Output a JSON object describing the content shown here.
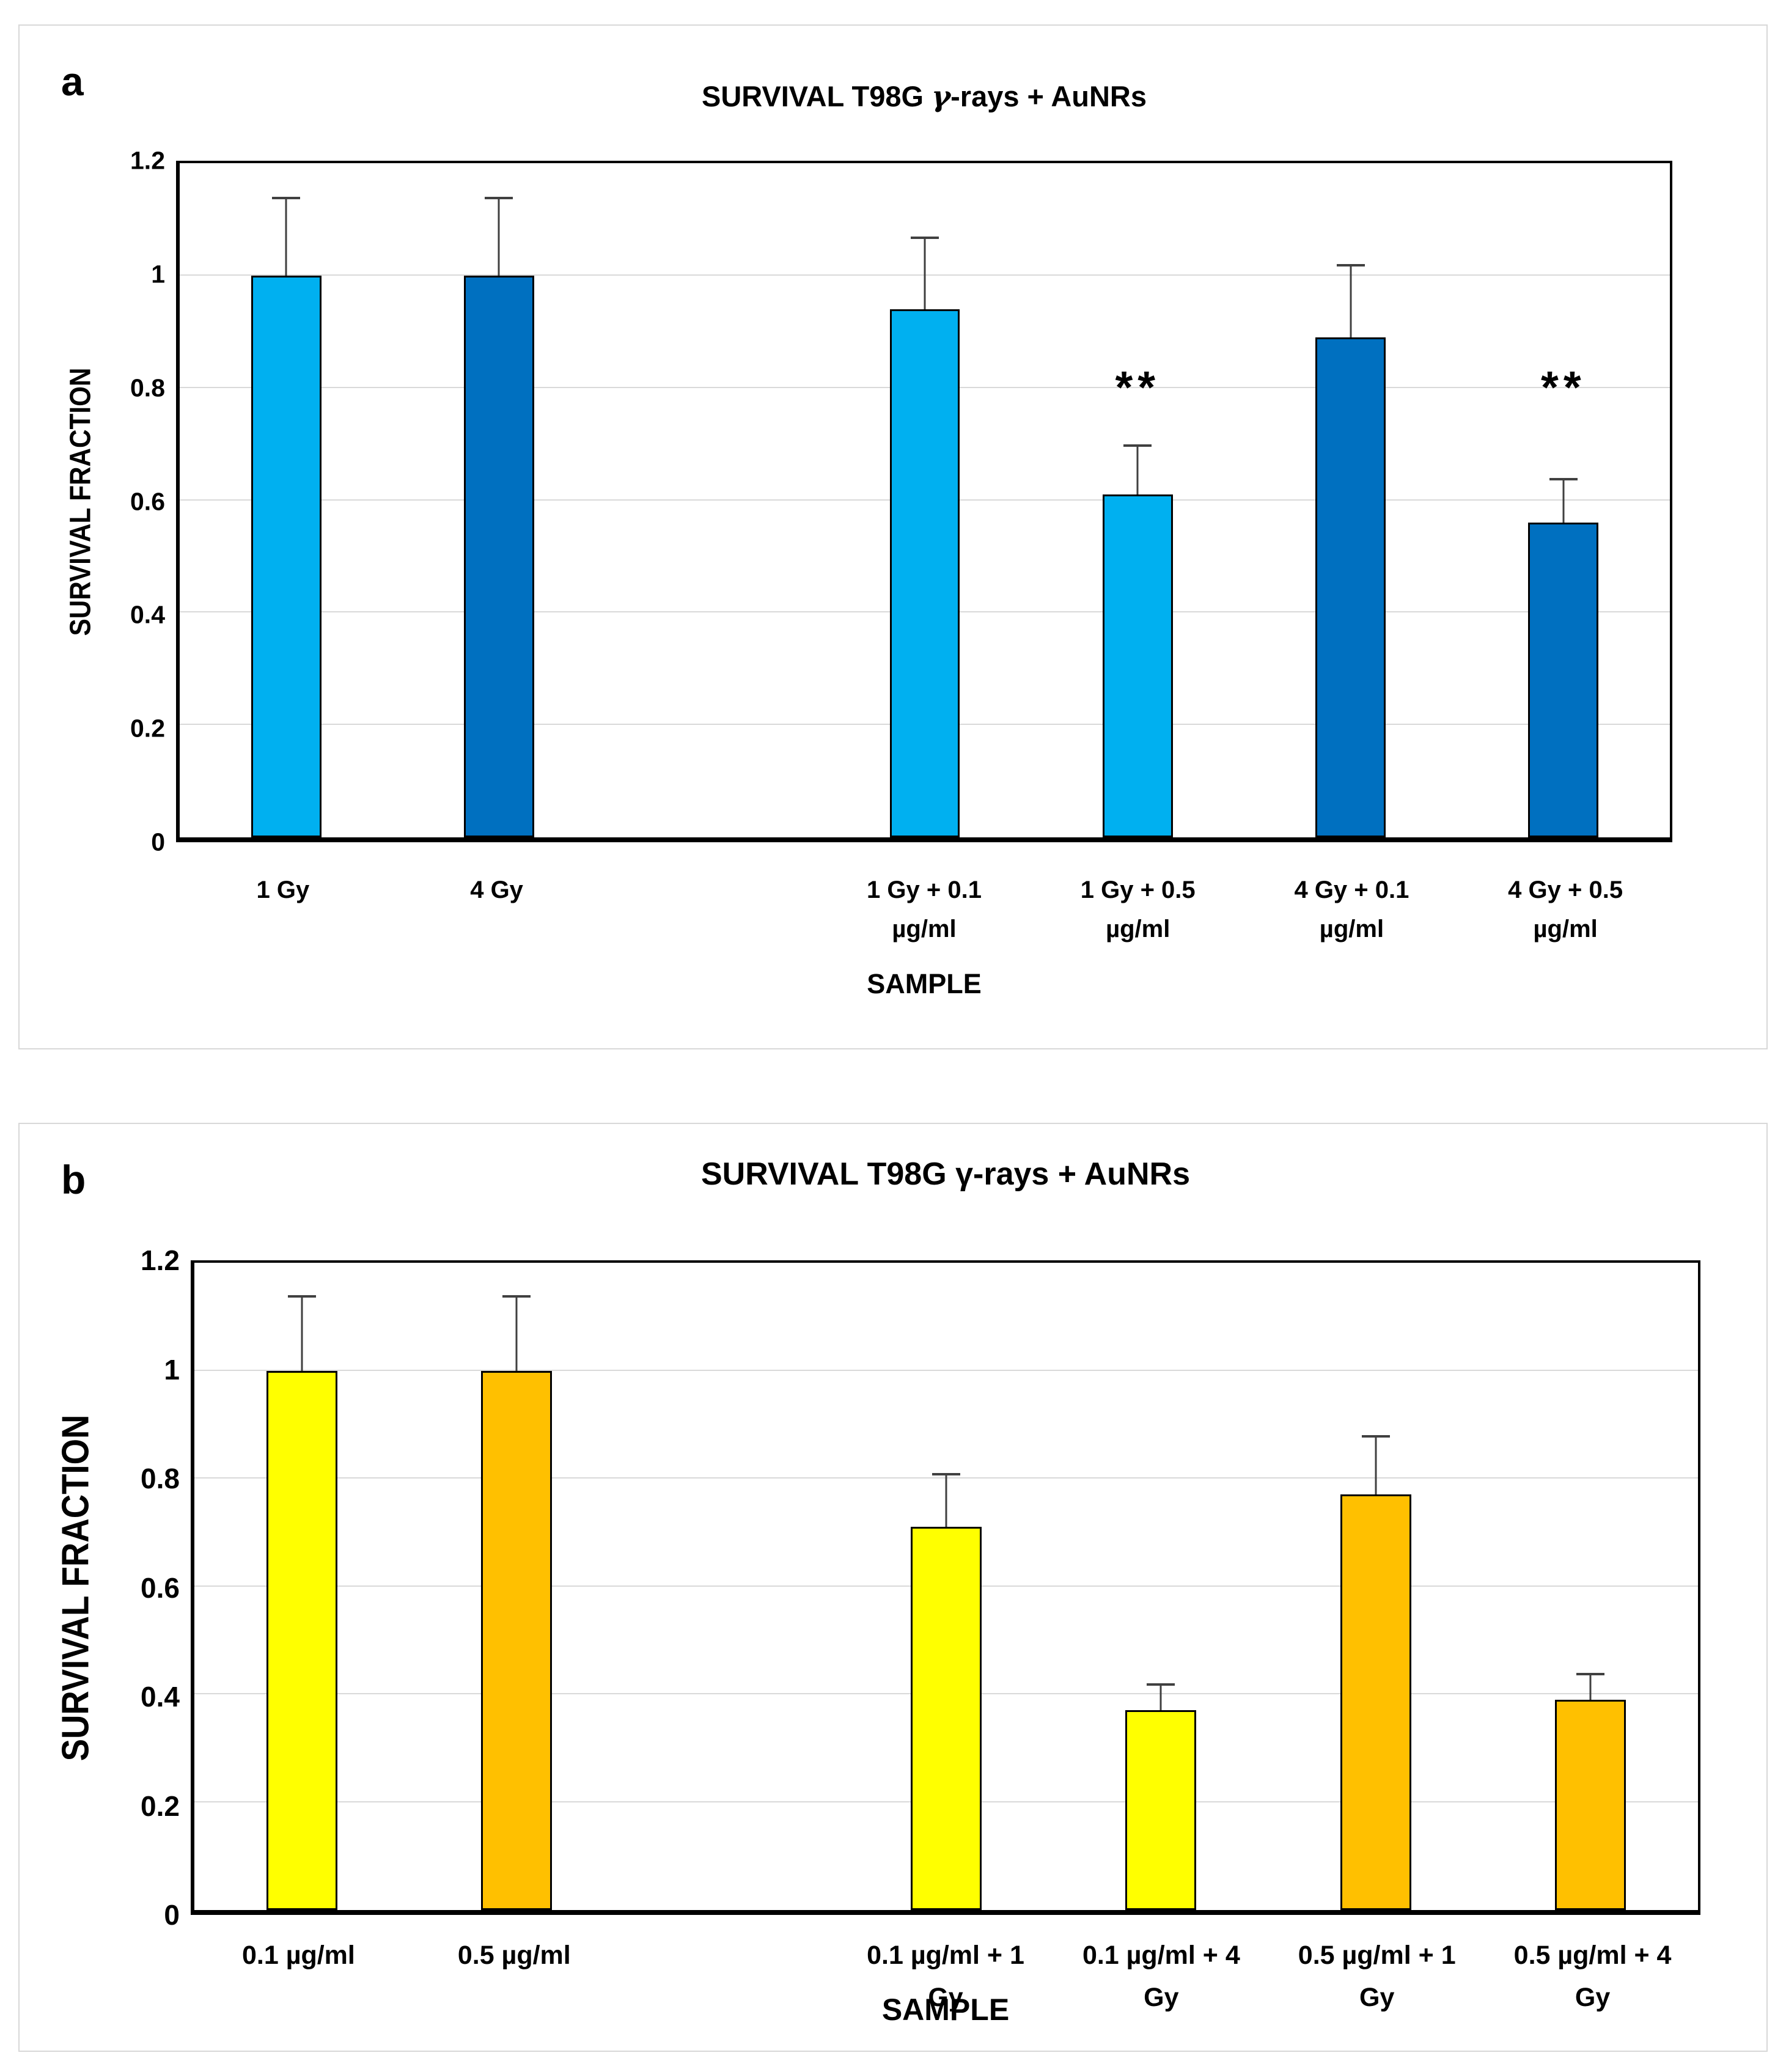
{
  "figure": {
    "description_colors": {
      "light_blue": "#00B0F0",
      "dark_blue": "#0070C0",
      "yellow": "#FFFF00",
      "orange": "#FFC000",
      "gridline": "#D9D9D9",
      "error_bar": "#404040",
      "bar_border": "#000000",
      "panel_border": "#D8D8D8"
    }
  },
  "chart_data": [
    {
      "type": "bar",
      "panel": "a",
      "corner_label": "a",
      "title": "SURVIVAL T98G γ-rays + AuNRs",
      "title_parts": [
        "SURVIVAL T98G ",
        "γ",
        "-rays + AuNRs"
      ],
      "xlabel": "SAMPLE",
      "ylabel": "SURVIVAL FRACTION",
      "ylim": [
        0,
        1.2
      ],
      "yticks": [
        "0",
        "0.2",
        "0.4",
        "0.6",
        "0.8",
        "1",
        "1.2"
      ],
      "grid": true,
      "legend": "none",
      "slots": 7,
      "bars": [
        {
          "slot": 1,
          "label_lines": [
            "1 Gy"
          ],
          "value": 1.0,
          "error": 0.14,
          "color_key": "light_blue",
          "significance": ""
        },
        {
          "slot": 2,
          "label_lines": [
            "4 Gy"
          ],
          "value": 1.0,
          "error": 0.14,
          "color_key": "dark_blue",
          "significance": ""
        },
        {
          "slot": 4,
          "label_lines": [
            "1 Gy + 0.1",
            "µg/ml"
          ],
          "value": 0.94,
          "error": 0.13,
          "color_key": "light_blue",
          "significance": ""
        },
        {
          "slot": 5,
          "label_lines": [
            "1 Gy + 0.5",
            "µg/ml"
          ],
          "value": 0.61,
          "error": 0.09,
          "color_key": "light_blue",
          "significance": "**",
          "sig_y": 0.76
        },
        {
          "slot": 6,
          "label_lines": [
            "4 Gy + 0.1",
            "µg/ml"
          ],
          "value": 0.89,
          "error": 0.13,
          "color_key": "dark_blue",
          "significance": ""
        },
        {
          "slot": 7,
          "label_lines": [
            "4 Gy + 0.5",
            "µg/ml"
          ],
          "value": 0.56,
          "error": 0.08,
          "color_key": "dark_blue",
          "significance": "**",
          "sig_y": 0.76
        }
      ]
    },
    {
      "type": "bar",
      "panel": "b",
      "corner_label": "b",
      "title": "SURVIVAL T98G γ-rays + AuNRs",
      "title_parts": [
        "SURVIVAL T98G ",
        "γ",
        "-rays + AuNRs"
      ],
      "xlabel": "SAMPLE",
      "ylabel": "SURVIVAL FRACTION",
      "ylim": [
        0,
        1.2
      ],
      "yticks": [
        "0",
        "0.2",
        "0.4",
        "0.6",
        "0.8",
        "1",
        "1.2"
      ],
      "grid": true,
      "legend": "none",
      "slots": 7,
      "bars": [
        {
          "slot": 1,
          "label_lines": [
            "0.1 µg/ml"
          ],
          "value": 1.0,
          "error": 0.14,
          "color_key": "yellow",
          "significance": ""
        },
        {
          "slot": 2,
          "label_lines": [
            "0.5 µg/ml"
          ],
          "value": 1.0,
          "error": 0.14,
          "color_key": "orange",
          "significance": ""
        },
        {
          "slot": 4,
          "label_lines": [
            "0.1 µg/ml + 1",
            "Gy"
          ],
          "value": 0.71,
          "error": 0.1,
          "color_key": "yellow",
          "significance": ""
        },
        {
          "slot": 5,
          "label_lines": [
            "0.1 µg/ml + 4",
            "Gy"
          ],
          "value": 0.37,
          "error": 0.05,
          "color_key": "yellow",
          "significance": ""
        },
        {
          "slot": 6,
          "label_lines": [
            "0.5 µg/ml  + 1",
            "Gy"
          ],
          "value": 0.77,
          "error": 0.11,
          "color_key": "orange",
          "significance": ""
        },
        {
          "slot": 7,
          "label_lines": [
            "0.5 µg/ml + 4",
            "Gy"
          ],
          "value": 0.39,
          "error": 0.05,
          "color_key": "orange",
          "significance": ""
        }
      ]
    }
  ]
}
